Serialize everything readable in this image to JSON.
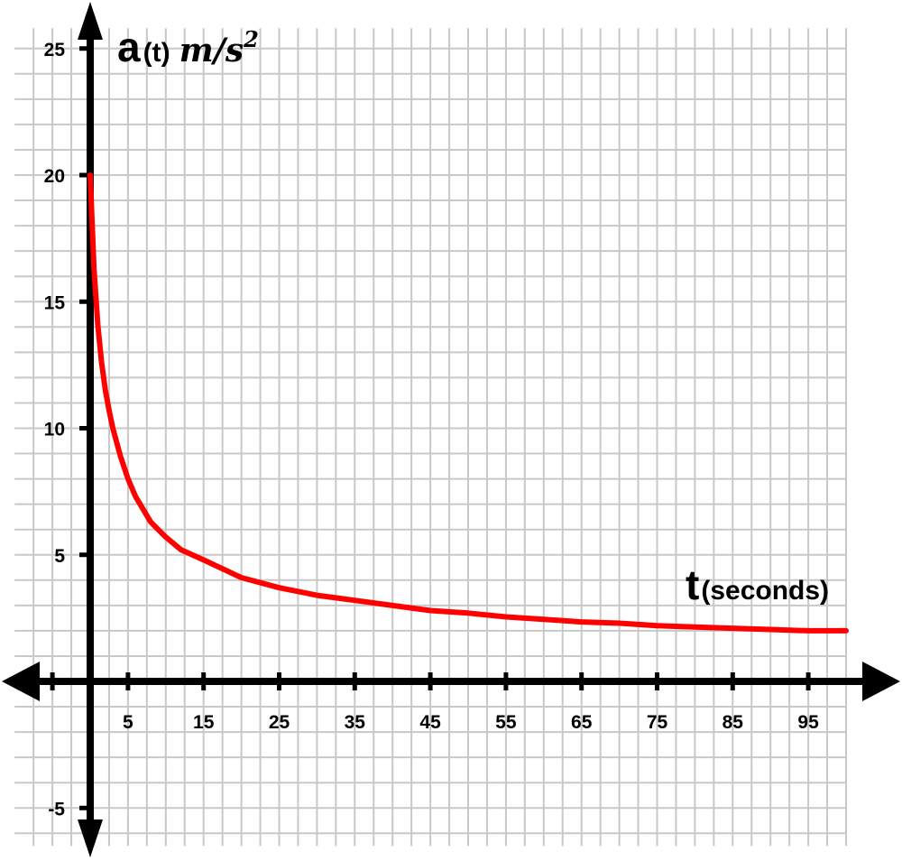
{
  "chart_data": {
    "type": "line",
    "title": "",
    "ylabel": {
      "main": "a",
      "arg": "(t)",
      "unit": "m/s",
      "unit_power": "2"
    },
    "xlabel": {
      "main": "t",
      "unit": "(seconds)"
    },
    "xlim": [
      -10,
      100
    ],
    "ylim": [
      -6.5,
      27
    ],
    "grid": true,
    "x_ticks": [
      5,
      15,
      25,
      35,
      45,
      55,
      65,
      75,
      85,
      95
    ],
    "y_ticks": [
      -5,
      5,
      10,
      15,
      20,
      25
    ],
    "series": [
      {
        "color": "#ff0000",
        "x": [
          0,
          0.5,
          1,
          1.5,
          2,
          2.5,
          3,
          4,
          5,
          6,
          7,
          8,
          9,
          10,
          12,
          15,
          20,
          25,
          30,
          35,
          40,
          45,
          50,
          55,
          60,
          65,
          70,
          75,
          80,
          85,
          90,
          95,
          100
        ],
        "y": [
          20,
          16.3,
          14.1,
          12.6,
          11.5,
          10.7,
          10,
          8.9,
          8,
          7.3,
          6.8,
          6.3,
          6,
          5.7,
          5.2,
          4.8,
          4.1,
          3.7,
          3.4,
          3.2,
          3,
          2.8,
          2.7,
          2.55,
          2.45,
          2.35,
          2.3,
          2.2,
          2.15,
          2.1,
          2.05,
          2,
          2
        ]
      }
    ]
  }
}
